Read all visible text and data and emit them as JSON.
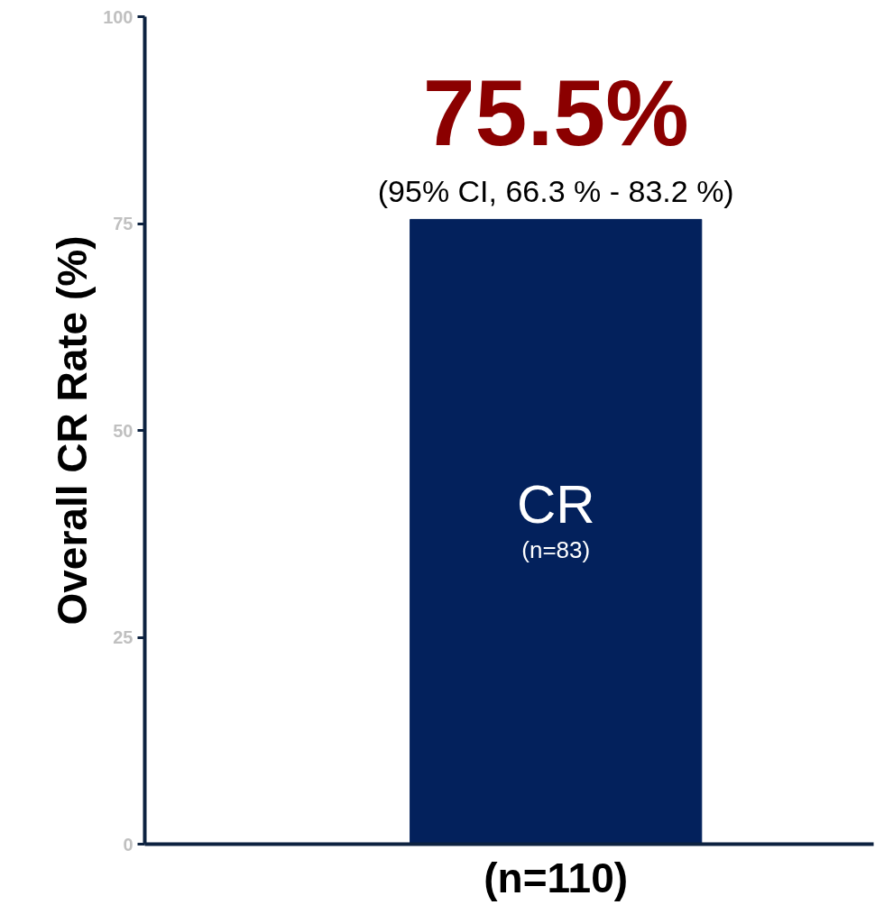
{
  "chart_data": {
    "type": "bar",
    "ylabel": "Overall CR Rate (%)",
    "categories": [
      "(n=110)"
    ],
    "values": [
      75.5
    ],
    "value_labels": [
      "75.5%"
    ],
    "color": "#03215c",
    "ylim": [
      0,
      100
    ],
    "yticks": [
      0,
      25,
      50,
      75,
      100
    ],
    "grid": false,
    "annotations": [
      "(95% CI, 66.3 % - 83.2 %)",
      "CR",
      "(n=83)"
    ]
  }
}
